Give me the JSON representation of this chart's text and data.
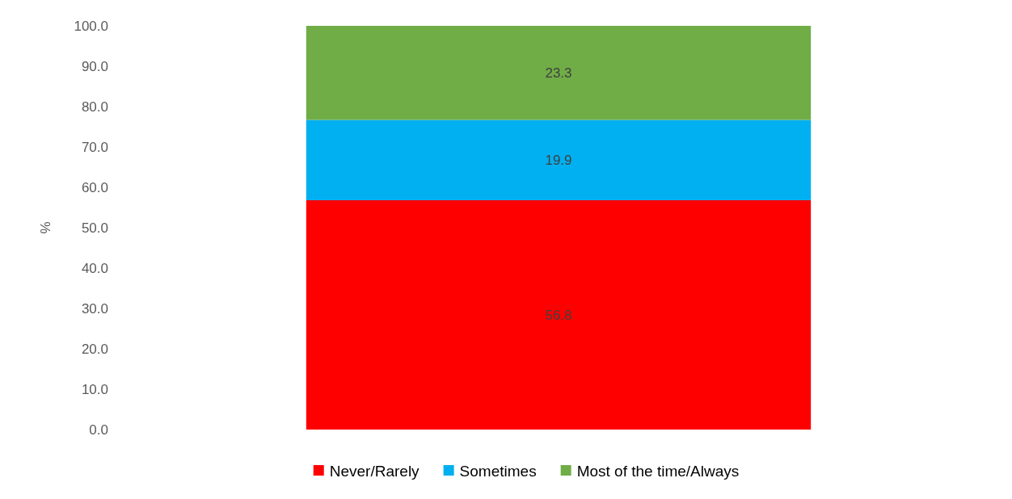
{
  "chart_data": {
    "type": "bar",
    "stacked": true,
    "ylabel": "%",
    "categories": [
      null
    ],
    "series": [
      {
        "name": "Never/Rarely",
        "color": "#ff0000",
        "values": [
          56.8
        ]
      },
      {
        "name": "Sometimes",
        "color": "#00b0f0",
        "values": [
          19.9
        ]
      },
      {
        "name": "Most of the time/Always",
        "color": "#70ad47",
        "values": [
          23.3
        ]
      }
    ],
    "ylim": [
      0,
      100
    ],
    "yticks": [
      {
        "value": 0,
        "label": "0.0"
      },
      {
        "value": 10,
        "label": "10.0"
      },
      {
        "value": 20,
        "label": "20.0"
      },
      {
        "value": 30,
        "label": "30.0"
      },
      {
        "value": 40,
        "label": "40.0"
      },
      {
        "value": 50,
        "label": "50.0"
      },
      {
        "value": 60,
        "label": "60.0"
      },
      {
        "value": 70,
        "label": "70.0"
      },
      {
        "value": 80,
        "label": "80.0"
      },
      {
        "value": 90,
        "label": "90.0"
      },
      {
        "value": 100,
        "label": "100.0"
      }
    ],
    "data_labels": true,
    "legend": "bottom",
    "grid": false
  }
}
